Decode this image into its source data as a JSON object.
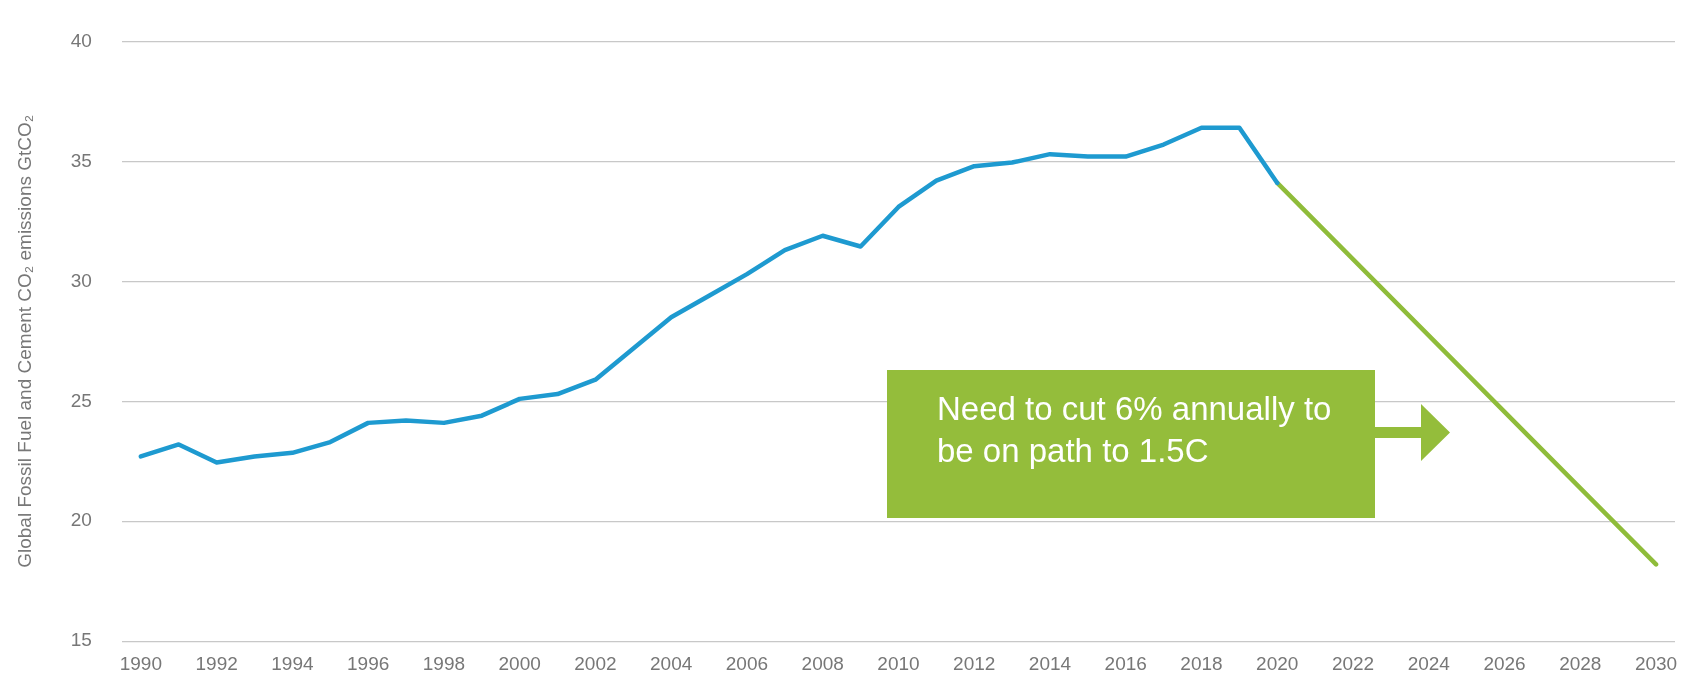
{
  "chart_data": {
    "type": "line",
    "ylabel": "Global Fossil Fuel and Cement CO₂ emissions GtCO₂",
    "xlim": [
      1989.5,
      2030.5
    ],
    "xticks": [
      1990,
      1992,
      1994,
      1996,
      1998,
      2000,
      2002,
      2004,
      2006,
      2008,
      2010,
      2012,
      2014,
      2016,
      2018,
      2020,
      2022,
      2024,
      2026,
      2028,
      2030
    ],
    "ylim": [
      15,
      40
    ],
    "yticks": [
      15,
      20,
      25,
      30,
      35,
      40
    ],
    "grid": "y",
    "marker": "none",
    "line_style": "solid",
    "series": [
      {
        "color": "#1e9ad0",
        "x": [
          1990,
          1991,
          1992,
          1993,
          1994,
          1995,
          1996,
          1997,
          1998,
          1999,
          2000,
          2001,
          2002,
          2003,
          2004,
          2005,
          2006,
          2007,
          2008,
          2009,
          2010,
          2011,
          2012,
          2013,
          2014,
          2015,
          2016,
          2017,
          2018,
          2019,
          2020
        ],
        "values": [
          22.7,
          23.2,
          22.45,
          22.7,
          22.85,
          23.3,
          24.1,
          24.2,
          24.1,
          24.4,
          25.1,
          25.3,
          25.9,
          27.2,
          28.5,
          29.4,
          30.3,
          31.3,
          31.9,
          31.45,
          33.1,
          34.2,
          34.8,
          34.95,
          35.3,
          35.2,
          35.2,
          35.7,
          36.4,
          36.4,
          34.1
        ]
      },
      {
        "color": "#8fbc3a",
        "x": [
          2020,
          2030
        ],
        "values": [
          34.1,
          18.2
        ]
      }
    ],
    "annotations": [
      "Need to cut 6% annually to be on path to 1.5C"
    ]
  }
}
